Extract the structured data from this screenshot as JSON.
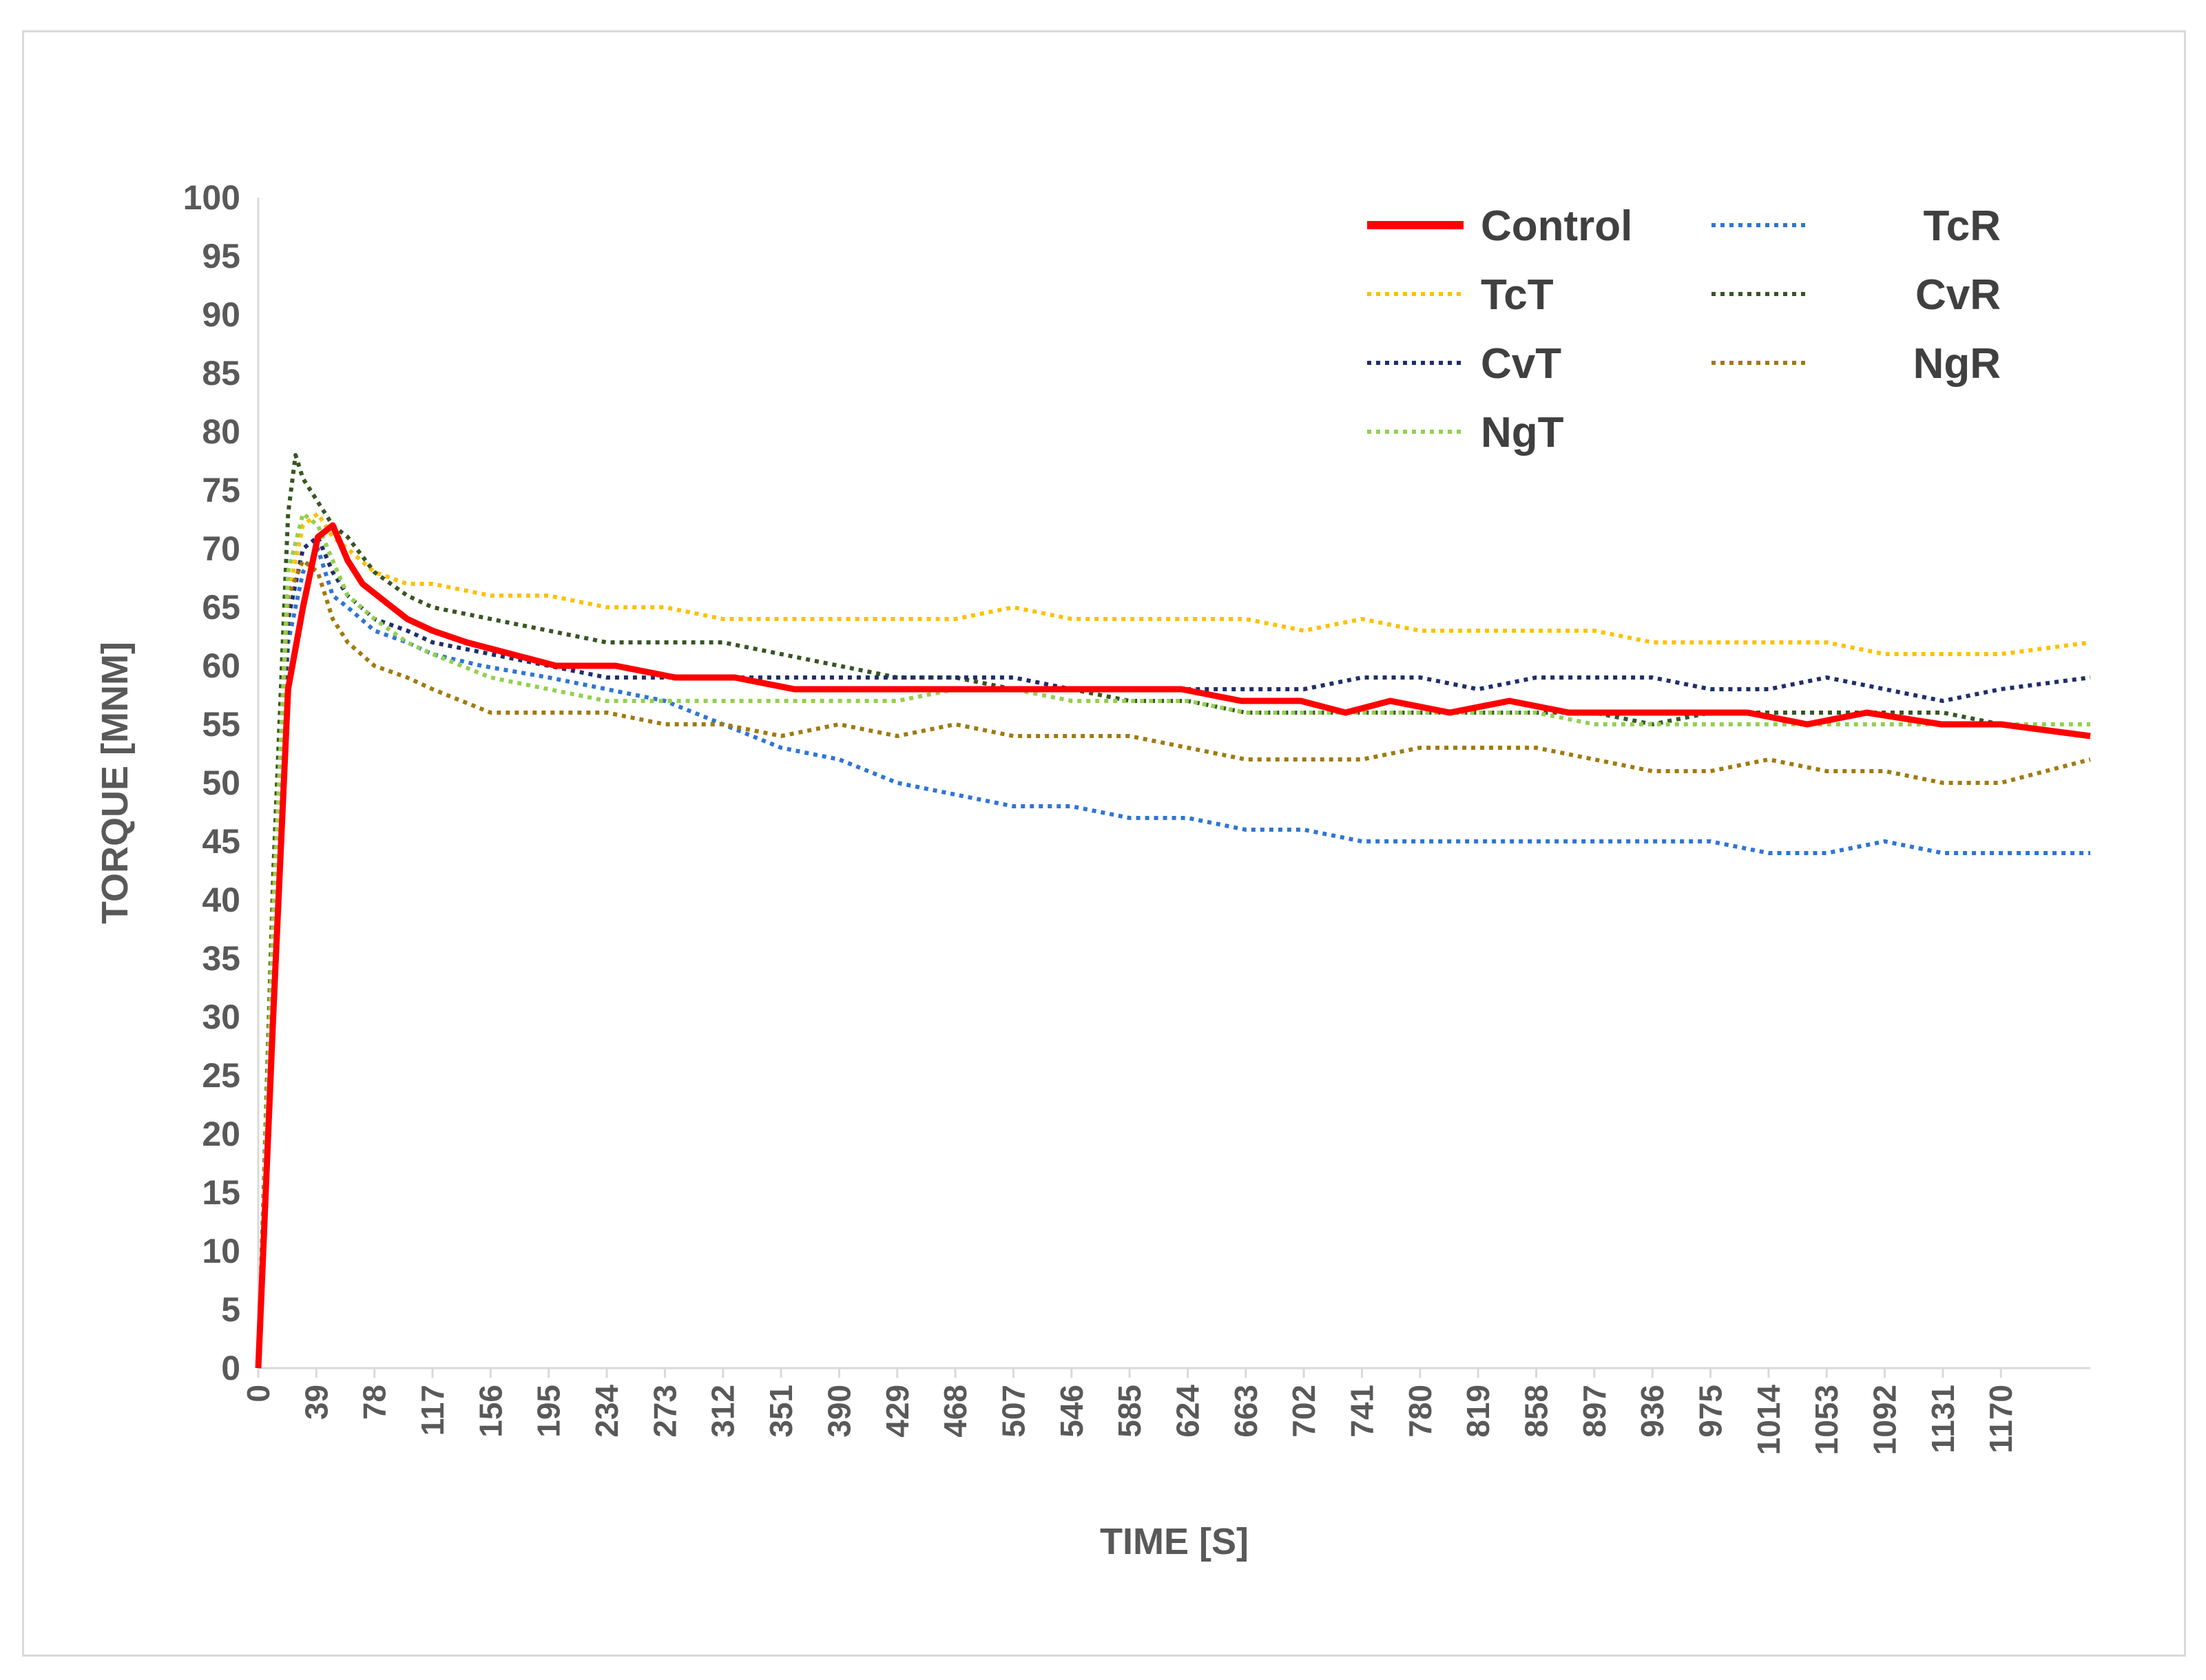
{
  "chart_data": {
    "type": "line",
    "xlabel": "TIME  [S]",
    "ylabel": "TORQUE [MNM]",
    "xlim": [
      0,
      1230
    ],
    "ylim": [
      0,
      100
    ],
    "x_ticks": [
      "0",
      "39",
      "78",
      "117",
      "156",
      "195",
      "234",
      "273",
      "312",
      "351",
      "390",
      "429",
      "468",
      "507",
      "546",
      "585",
      "624",
      "663",
      "702",
      "741",
      "780",
      "819",
      "858",
      "897",
      "936",
      "975",
      "1014",
      "1053",
      "1092",
      "1131",
      "1170"
    ],
    "y_ticks": [
      "0",
      "5",
      "10",
      "15",
      "20",
      "25",
      "30",
      "35",
      "40",
      "45",
      "50",
      "55",
      "60",
      "65",
      "70",
      "75",
      "80",
      "85",
      "90",
      "95",
      "100"
    ],
    "grid": false,
    "legend": "top-right",
    "series": [
      {
        "name": "Control",
        "color": "#ff0000",
        "style": "solid",
        "x": [
          0,
          10,
          20,
          30,
          40,
          50,
          60,
          70,
          80,
          90,
          100,
          117,
          140,
          170,
          200,
          240,
          280,
          320,
          360,
          400,
          450,
          500,
          560,
          620,
          660,
          700,
          730,
          760,
          800,
          840,
          880,
          920,
          960,
          1000,
          1040,
          1080,
          1130,
          1170,
          1230
        ],
        "y": [
          0,
          30,
          58,
          65,
          71,
          72,
          69,
          67,
          66,
          65,
          64,
          63,
          62,
          61,
          60,
          60,
          59,
          59,
          58,
          58,
          58,
          58,
          58,
          58,
          57,
          57,
          56,
          57,
          56,
          57,
          56,
          56,
          56,
          56,
          55,
          56,
          55,
          55,
          54
        ]
      },
      {
        "name": "TcR",
        "color": "#2e75d6",
        "style": "dotted",
        "x": [
          0,
          10,
          20,
          30,
          40,
          50,
          60,
          78,
          100,
          117,
          150,
          195,
          234,
          273,
          312,
          351,
          390,
          429,
          468,
          507,
          546,
          585,
          624,
          663,
          702,
          741,
          780,
          819,
          858,
          897,
          936,
          975,
          1014,
          1053,
          1092,
          1131,
          1170,
          1230
        ],
        "y": [
          0,
          35,
          62,
          68,
          70,
          66,
          65,
          63,
          62,
          61,
          60,
          59,
          58,
          57,
          55,
          53,
          52,
          50,
          49,
          48,
          48,
          47,
          47,
          46,
          46,
          45,
          45,
          45,
          45,
          45,
          45,
          45,
          44,
          44,
          45,
          44,
          44,
          44
        ]
      },
      {
        "name": "TcT",
        "color": "#ffc000",
        "style": "dotted",
        "x": [
          0,
          10,
          20,
          30,
          40,
          50,
          60,
          78,
          100,
          117,
          156,
          195,
          234,
          273,
          312,
          351,
          390,
          429,
          468,
          507,
          546,
          585,
          624,
          663,
          702,
          741,
          780,
          819,
          858,
          897,
          936,
          975,
          1014,
          1053,
          1092,
          1131,
          1170,
          1230
        ],
        "y": [
          0,
          38,
          66,
          72,
          73,
          71,
          70,
          68,
          67,
          67,
          66,
          66,
          65,
          65,
          64,
          64,
          64,
          64,
          64,
          65,
          64,
          64,
          64,
          64,
          63,
          64,
          63,
          63,
          63,
          63,
          62,
          62,
          62,
          62,
          61,
          61,
          61,
          62
        ]
      },
      {
        "name": "CvR",
        "color": "#375623",
        "style": "dotted",
        "x": [
          0,
          10,
          20,
          25,
          30,
          40,
          50,
          60,
          78,
          100,
          117,
          156,
          195,
          234,
          273,
          312,
          351,
          390,
          429,
          468,
          507,
          546,
          585,
          624,
          663,
          702,
          741,
          780,
          819,
          858,
          897,
          936,
          975,
          1014,
          1053,
          1092,
          1131,
          1170,
          1230
        ],
        "y": [
          0,
          42,
          73,
          78,
          76,
          74,
          72,
          71,
          68,
          66,
          65,
          64,
          63,
          62,
          62,
          62,
          61,
          60,
          59,
          59,
          58,
          58,
          57,
          57,
          56,
          56,
          56,
          56,
          56,
          56,
          56,
          55,
          56,
          56,
          56,
          56,
          56,
          55,
          54
        ]
      },
      {
        "name": "CvT",
        "color": "#1f2e6b",
        "style": "dotted",
        "x": [
          0,
          10,
          20,
          30,
          40,
          50,
          60,
          78,
          100,
          117,
          156,
          195,
          234,
          273,
          312,
          351,
          390,
          429,
          468,
          507,
          546,
          585,
          624,
          663,
          702,
          741,
          780,
          819,
          858,
          897,
          936,
          975,
          1014,
          1053,
          1092,
          1131,
          1170,
          1230
        ],
        "y": [
          0,
          36,
          64,
          70,
          71,
          68,
          66,
          64,
          63,
          62,
          61,
          60,
          59,
          59,
          59,
          59,
          59,
          59,
          59,
          59,
          58,
          58,
          58,
          58,
          58,
          59,
          59,
          58,
          59,
          59,
          59,
          58,
          58,
          59,
          58,
          57,
          58,
          59
        ]
      },
      {
        "name": "NgR",
        "color": "#a07a10",
        "style": "dotted",
        "x": [
          0,
          10,
          20,
          30,
          40,
          50,
          60,
          78,
          100,
          117,
          156,
          195,
          234,
          273,
          312,
          351,
          390,
          429,
          468,
          507,
          546,
          585,
          624,
          663,
          702,
          741,
          780,
          819,
          858,
          897,
          936,
          975,
          1014,
          1053,
          1092,
          1131,
          1170,
          1230
        ],
        "y": [
          0,
          40,
          66,
          69,
          68,
          64,
          62,
          60,
          59,
          58,
          56,
          56,
          56,
          55,
          55,
          54,
          55,
          54,
          55,
          54,
          54,
          54,
          53,
          52,
          52,
          52,
          53,
          53,
          53,
          52,
          51,
          51,
          52,
          51,
          51,
          50,
          50,
          52
        ]
      },
      {
        "name": "NgT",
        "color": "#92d050",
        "style": "dotted",
        "x": [
          0,
          10,
          20,
          30,
          40,
          50,
          60,
          78,
          100,
          117,
          156,
          195,
          234,
          273,
          312,
          351,
          390,
          429,
          468,
          507,
          546,
          585,
          624,
          663,
          702,
          741,
          780,
          819,
          858,
          897,
          936,
          975,
          1014,
          1053,
          1092,
          1131,
          1170,
          1230
        ],
        "y": [
          0,
          38,
          68,
          73,
          72,
          69,
          66,
          64,
          62,
          61,
          59,
          58,
          57,
          57,
          57,
          57,
          57,
          57,
          58,
          58,
          57,
          57,
          57,
          56,
          56,
          56,
          56,
          56,
          56,
          55,
          55,
          55,
          55,
          55,
          55,
          55,
          55,
          55
        ]
      }
    ]
  }
}
